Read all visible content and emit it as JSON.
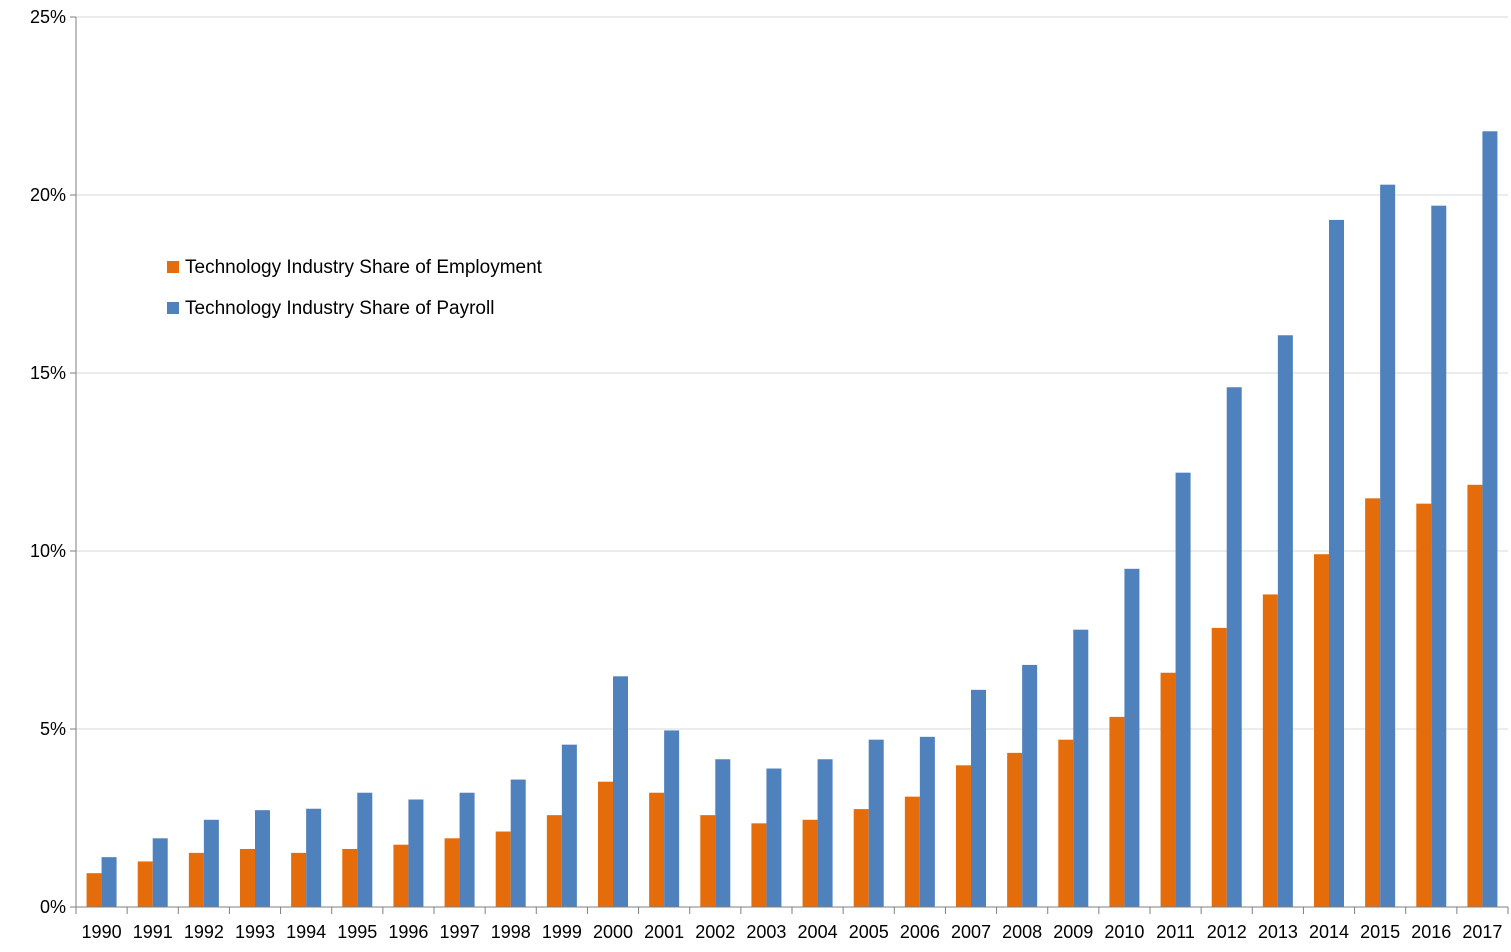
{
  "chart_data": {
    "type": "bar",
    "title": "",
    "xlabel": "",
    "ylabel": "",
    "categories": [
      "1990",
      "1991",
      "1992",
      "1993",
      "1994",
      "1995",
      "1996",
      "1997",
      "1998",
      "1999",
      "2000",
      "2001",
      "2002",
      "2003",
      "2004",
      "2005",
      "2006",
      "2007",
      "2008",
      "2009",
      "2010",
      "2011",
      "2012",
      "2013",
      "2014",
      "2015",
      "2016",
      "2017"
    ],
    "series": [
      {
        "name": "Technology Industry Share of Employment",
        "color": "#E46C0A",
        "values": [
          0.95,
          1.28,
          1.52,
          1.63,
          1.52,
          1.63,
          1.75,
          1.93,
          2.12,
          2.58,
          3.52,
          3.21,
          2.58,
          2.35,
          2.45,
          2.75,
          3.1,
          3.98,
          4.33,
          4.7,
          5.34,
          6.58,
          7.84,
          8.78,
          9.91,
          11.48,
          11.33,
          11.86
        ]
      },
      {
        "name": "Technology Industry Share of Payroll",
        "color": "#4F81BD",
        "values": [
          1.4,
          1.93,
          2.45,
          2.72,
          2.76,
          3.21,
          3.02,
          3.21,
          3.58,
          4.56,
          6.48,
          4.96,
          4.15,
          3.89,
          4.15,
          4.7,
          4.78,
          6.1,
          6.8,
          7.79,
          9.5,
          12.2,
          14.6,
          16.06,
          19.3,
          20.29,
          19.7,
          21.79
        ]
      }
    ],
    "ylim": [
      0,
      25
    ],
    "yticks": [
      0,
      5,
      10,
      15,
      20,
      25
    ],
    "ytick_labels": [
      "0%",
      "5%",
      "10%",
      "15%",
      "20%",
      "25%"
    ],
    "grid": true,
    "legend_position": "upper-left"
  }
}
